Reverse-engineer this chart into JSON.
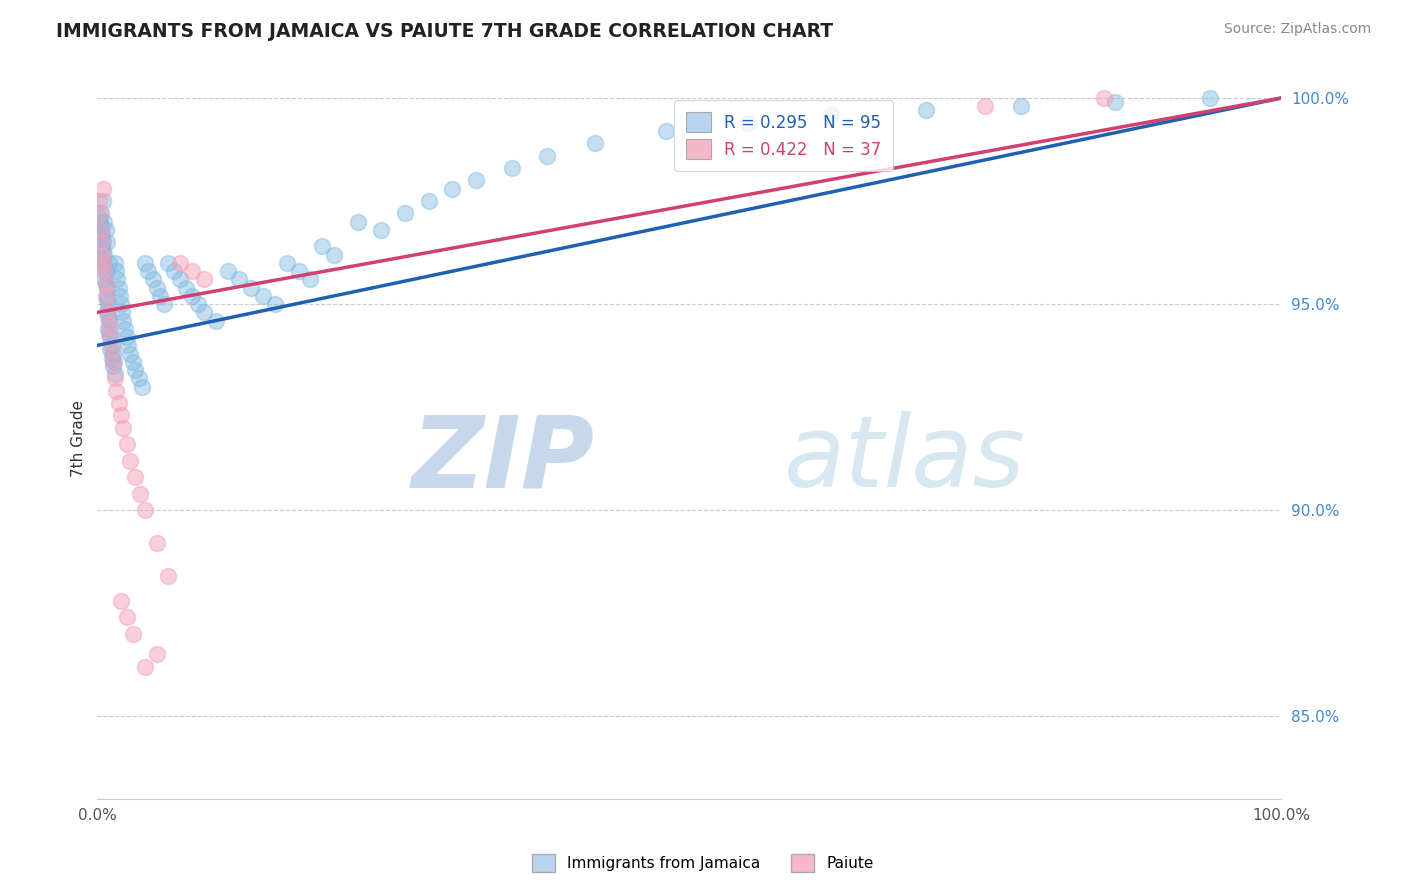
{
  "title": "IMMIGRANTS FROM JAMAICA VS PAIUTE 7TH GRADE CORRELATION CHART",
  "source": "Source: ZipAtlas.com",
  "ylabel": "7th Grade",
  "xlim": [
    0.0,
    1.0
  ],
  "ylim": [
    0.83,
    1.005
  ],
  "x_ticks": [
    0.0,
    0.25,
    0.5,
    0.75,
    1.0
  ],
  "x_ticklabels": [
    "0.0%",
    "",
    "",
    "",
    "100.0%"
  ],
  "y_ticks": [
    0.85,
    0.9,
    0.95,
    1.0
  ],
  "y_ticklabels": [
    "85.0%",
    "90.0%",
    "95.0%",
    "100.0%"
  ],
  "blue_color": "#7fb9e0",
  "pink_color": "#f4a0b8",
  "trend_blue": "#2060b0",
  "trend_pink": "#d04070",
  "legend_blue_face": "#b8d4ee",
  "legend_pink_face": "#f5b8c8",
  "watermark_color": "#dde8f5",
  "grid_color": "#cccccc",
  "title_color": "#222222",
  "source_color": "#888888",
  "ylabel_color": "#333333",
  "tick_color_x": "#555555",
  "tick_color_y": "#4488cc",
  "jamaica_x": [
    0.001,
    0.002,
    0.002,
    0.003,
    0.003,
    0.003,
    0.004,
    0.004,
    0.004,
    0.005,
    0.005,
    0.005,
    0.005,
    0.006,
    0.006,
    0.006,
    0.006,
    0.007,
    0.007,
    0.007,
    0.007,
    0.008,
    0.008,
    0.008,
    0.008,
    0.009,
    0.009,
    0.009,
    0.01,
    0.01,
    0.01,
    0.011,
    0.011,
    0.012,
    0.012,
    0.013,
    0.013,
    0.014,
    0.015,
    0.015,
    0.016,
    0.017,
    0.018,
    0.019,
    0.02,
    0.021,
    0.022,
    0.023,
    0.025,
    0.026,
    0.028,
    0.03,
    0.032,
    0.035,
    0.038,
    0.04,
    0.043,
    0.047,
    0.05,
    0.053,
    0.056,
    0.06,
    0.065,
    0.07,
    0.075,
    0.08,
    0.085,
    0.09,
    0.1,
    0.11,
    0.12,
    0.13,
    0.14,
    0.15,
    0.16,
    0.17,
    0.18,
    0.19,
    0.2,
    0.22,
    0.24,
    0.26,
    0.28,
    0.3,
    0.32,
    0.35,
    0.38,
    0.42,
    0.48,
    0.55,
    0.62,
    0.7,
    0.78,
    0.86,
    0.94
  ],
  "jamaica_y": [
    0.971,
    0.97,
    0.968,
    0.972,
    0.969,
    0.966,
    0.967,
    0.964,
    0.961,
    0.965,
    0.963,
    0.96,
    0.975,
    0.962,
    0.959,
    0.956,
    0.97,
    0.958,
    0.955,
    0.952,
    0.968,
    0.954,
    0.951,
    0.948,
    0.965,
    0.95,
    0.947,
    0.944,
    0.946,
    0.943,
    0.96,
    0.942,
    0.939,
    0.94,
    0.937,
    0.938,
    0.935,
    0.936,
    0.96,
    0.933,
    0.958,
    0.956,
    0.954,
    0.952,
    0.95,
    0.948,
    0.946,
    0.944,
    0.942,
    0.94,
    0.938,
    0.936,
    0.934,
    0.932,
    0.93,
    0.96,
    0.958,
    0.956,
    0.954,
    0.952,
    0.95,
    0.96,
    0.958,
    0.956,
    0.954,
    0.952,
    0.95,
    0.948,
    0.946,
    0.958,
    0.956,
    0.954,
    0.952,
    0.95,
    0.96,
    0.958,
    0.956,
    0.964,
    0.962,
    0.97,
    0.968,
    0.972,
    0.975,
    0.978,
    0.98,
    0.983,
    0.986,
    0.989,
    0.992,
    0.994,
    0.996,
    0.997,
    0.998,
    0.999,
    1.0
  ],
  "paiute_x": [
    0.001,
    0.002,
    0.003,
    0.003,
    0.004,
    0.005,
    0.005,
    0.006,
    0.007,
    0.008,
    0.009,
    0.01,
    0.011,
    0.012,
    0.013,
    0.015,
    0.016,
    0.018,
    0.02,
    0.022,
    0.025,
    0.028,
    0.032,
    0.036,
    0.04,
    0.05,
    0.06,
    0.07,
    0.08,
    0.09,
    0.02,
    0.025,
    0.03,
    0.05,
    0.75,
    0.85,
    0.04
  ],
  "paiute_y": [
    0.975,
    0.972,
    0.968,
    0.965,
    0.962,
    0.978,
    0.96,
    0.958,
    0.955,
    0.952,
    0.948,
    0.945,
    0.942,
    0.939,
    0.936,
    0.932,
    0.929,
    0.926,
    0.923,
    0.92,
    0.916,
    0.912,
    0.908,
    0.904,
    0.9,
    0.892,
    0.884,
    0.96,
    0.958,
    0.956,
    0.878,
    0.874,
    0.87,
    0.865,
    0.998,
    1.0,
    0.862
  ],
  "trend_blue_x0": 0.0,
  "trend_blue_y0": 0.94,
  "trend_blue_x1": 1.0,
  "trend_blue_y1": 1.0,
  "trend_pink_x0": 0.0,
  "trend_pink_y0": 0.948,
  "trend_pink_x1": 1.0,
  "trend_pink_y1": 1.0
}
